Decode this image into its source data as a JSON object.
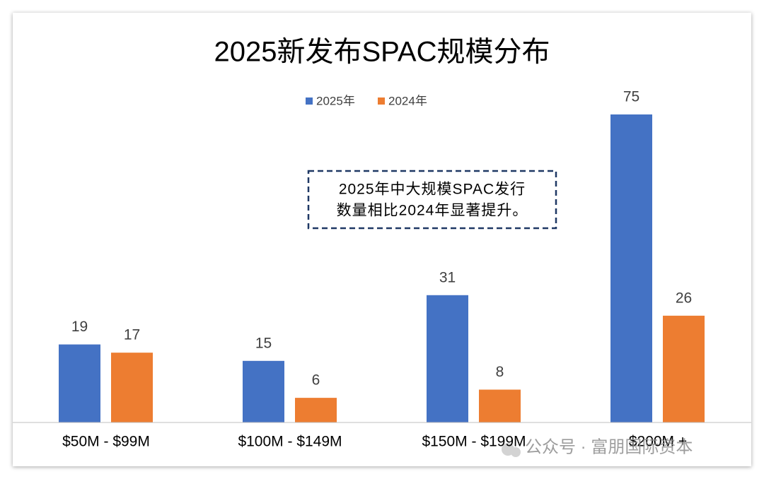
{
  "chart_data": {
    "type": "bar",
    "title": "2025新发布SPAC规模分布",
    "categories": [
      "$50M - $99M",
      "$100M - $149M",
      "$150M - $199M",
      "$200M +"
    ],
    "series": [
      {
        "name": "2025年",
        "color": "#4472c4",
        "values": [
          19,
          15,
          31,
          75
        ]
      },
      {
        "name": "2024年",
        "color": "#ed7d31",
        "values": [
          17,
          6,
          8,
          26
        ]
      }
    ],
    "legend": "top",
    "annotation": [
      "2025年中大规模SPAC发行",
      "数量相比2024年显著提升。"
    ],
    "watermark": "公众号 · 富朋国际资本"
  }
}
